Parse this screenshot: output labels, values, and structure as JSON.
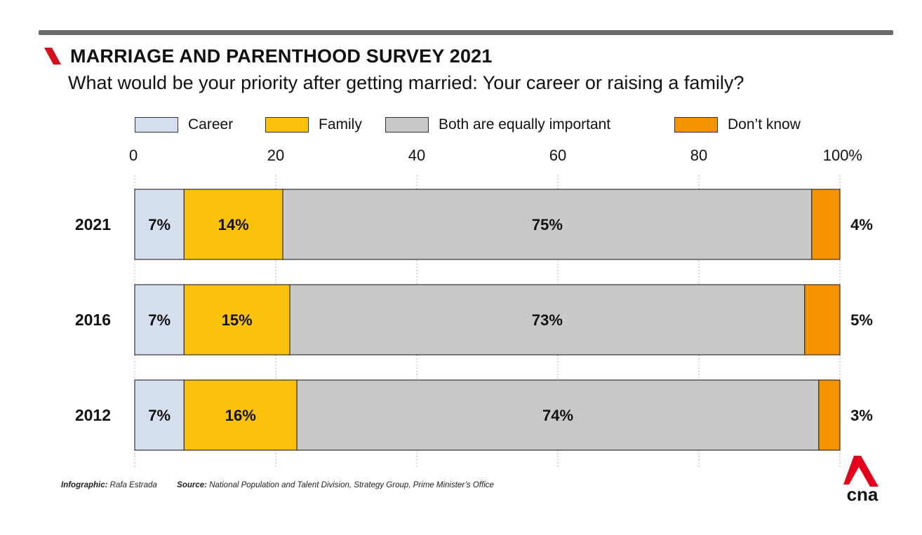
{
  "header": {
    "title": "MARRIAGE AND PARENTHOOD SURVEY 2021",
    "subtitle": "What would be your priority after getting married: Your career or raising a family?"
  },
  "footer": {
    "infographic_label": "Infographic:",
    "infographic_value": "Rafa Estrada",
    "source_label": "Source:",
    "source_value": "National Population and Talent Division, Strategy Group, Prime Minister’s Office"
  },
  "logo": {
    "text": "cna",
    "color": "#e3001b"
  },
  "chart_data": {
    "type": "bar",
    "orientation": "horizontal",
    "stacked": true,
    "categories": [
      "2021",
      "2016",
      "2012"
    ],
    "series": [
      {
        "name": "Career",
        "color": "#d6dff0",
        "values": [
          7,
          7,
          7
        ],
        "labels": [
          "7%",
          "7%",
          "7%"
        ]
      },
      {
        "name": "Family",
        "color": "#f9c20a",
        "values": [
          14,
          15,
          16
        ],
        "labels": [
          "14%",
          "15%",
          "16%"
        ]
      },
      {
        "name": "Both are equally important",
        "color": "#c9c9c9",
        "values": [
          75,
          73,
          74
        ],
        "labels": [
          "75%",
          "73%",
          "74%"
        ]
      },
      {
        "name": "Don’t know",
        "color": "#f39300",
        "values": [
          4,
          5,
          3
        ],
        "labels": [
          "4%",
          "5%",
          "3%"
        ]
      }
    ],
    "xlim": [
      0,
      100
    ],
    "x_ticks": [
      "0",
      "20",
      "40",
      "60",
      "80",
      "100%"
    ],
    "grid": true,
    "legend_position": "top"
  }
}
